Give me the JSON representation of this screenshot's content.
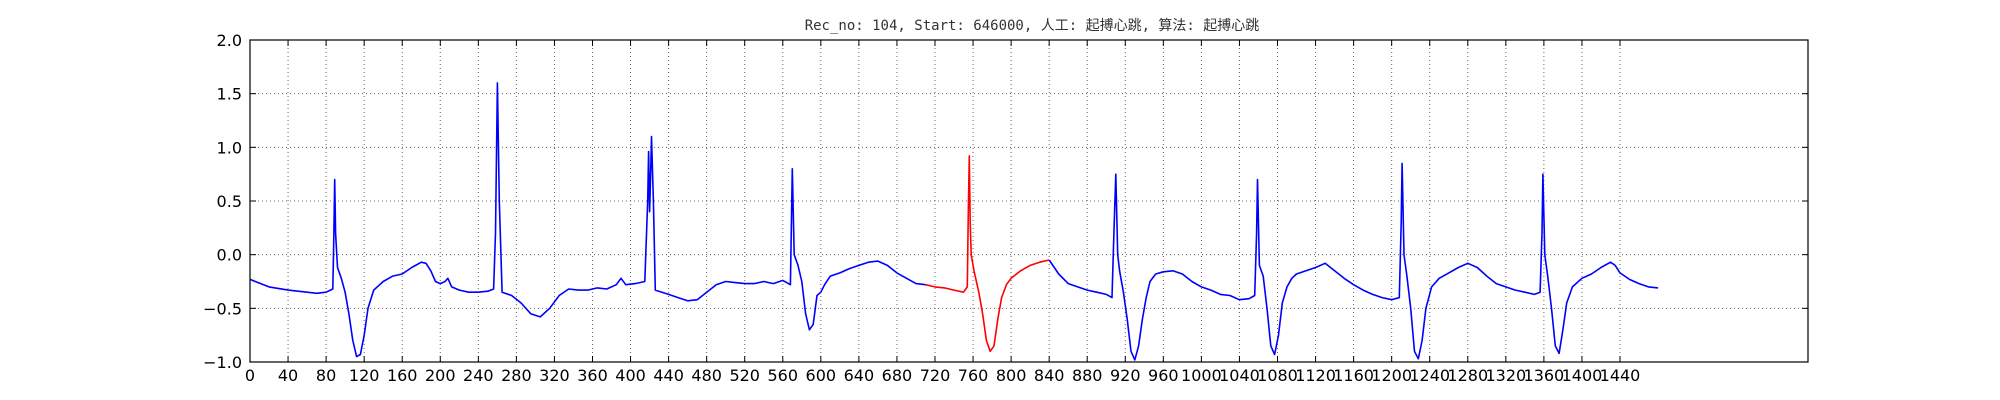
{
  "chart_data": {
    "type": "line",
    "title": "Rec_no: 104, Start: 646000, 人工: 起搏心跳, 算法: 起搏心跳",
    "xlabel": "",
    "ylabel": "",
    "xlim": [
      0,
      1440
    ],
    "ylim": [
      -1.0,
      2.0
    ],
    "yticks": [
      -1.0,
      -0.5,
      0.0,
      0.5,
      1.0,
      1.5,
      2.0
    ],
    "ytick_labels": [
      "−1.0",
      "−0.5",
      "0.0",
      "0.5",
      "1.0",
      "1.5",
      "2.0"
    ],
    "xticks": [
      0,
      40,
      80,
      120,
      160,
      200,
      240,
      280,
      320,
      360,
      400,
      440,
      480,
      520,
      560,
      600,
      640,
      680,
      720,
      760,
      800,
      840,
      880,
      920,
      960,
      1000,
      1040,
      1080,
      1120,
      1160,
      1200,
      1240,
      1280,
      1320,
      1360,
      1400,
      1440
    ],
    "xtick_labels": [
      "0",
      "40",
      "80",
      "120",
      "160",
      "200",
      "240",
      "280",
      "320",
      "360",
      "400",
      "440",
      "480",
      "520",
      "560",
      "600",
      "640",
      "680",
      "720",
      "760",
      "800",
      "840",
      "880",
      "920",
      "960",
      "1000",
      "1040",
      "1080",
      "1120",
      "1160",
      "1200",
      "1240",
      "1280",
      "1320",
      "1360",
      "1400",
      "1440"
    ],
    "grid": true,
    "series": [
      {
        "color": "#0000ff",
        "points": [
          [
            0,
            -0.23
          ],
          [
            20,
            -0.3
          ],
          [
            40,
            -0.33
          ],
          [
            60,
            -0.35
          ],
          [
            70,
            -0.36
          ],
          [
            80,
            -0.35
          ],
          [
            87,
            -0.32
          ],
          [
            88,
            0.1
          ],
          [
            89,
            0.7
          ],
          [
            90,
            0.2
          ],
          [
            92,
            -0.12
          ],
          [
            96,
            -0.22
          ],
          [
            100,
            -0.35
          ],
          [
            104,
            -0.55
          ],
          [
            108,
            -0.8
          ],
          [
            112,
            -0.95
          ],
          [
            116,
            -0.93
          ],
          [
            120,
            -0.75
          ],
          [
            124,
            -0.5
          ],
          [
            130,
            -0.33
          ],
          [
            140,
            -0.25
          ],
          [
            150,
            -0.2
          ],
          [
            160,
            -0.18
          ],
          [
            170,
            -0.12
          ],
          [
            180,
            -0.07
          ],
          [
            185,
            -0.08
          ],
          [
            190,
            -0.15
          ],
          [
            195,
            -0.25
          ],
          [
            200,
            -0.27
          ],
          [
            205,
            -0.25
          ],
          [
            208,
            -0.22
          ],
          [
            212,
            -0.3
          ],
          [
            220,
            -0.33
          ],
          [
            230,
            -0.35
          ],
          [
            240,
            -0.35
          ],
          [
            250,
            -0.34
          ],
          [
            256,
            -0.32
          ],
          [
            258,
            0.2
          ],
          [
            260,
            1.6
          ],
          [
            262,
            0.5
          ],
          [
            265,
            -0.35
          ],
          [
            275,
            -0.38
          ],
          [
            285,
            -0.45
          ],
          [
            295,
            -0.55
          ],
          [
            305,
            -0.58
          ],
          [
            315,
            -0.5
          ],
          [
            325,
            -0.38
          ],
          [
            335,
            -0.32
          ],
          [
            345,
            -0.33
          ],
          [
            355,
            -0.33
          ],
          [
            365,
            -0.31
          ],
          [
            375,
            -0.32
          ],
          [
            385,
            -0.28
          ],
          [
            390,
            -0.22
          ],
          [
            395,
            -0.28
          ],
          [
            405,
            -0.27
          ],
          [
            415,
            -0.25
          ],
          [
            418,
            0.5
          ],
          [
            419,
            0.96
          ],
          [
            420,
            0.4
          ],
          [
            421,
            0.7
          ],
          [
            422,
            1.1
          ],
          [
            424,
            0.5
          ],
          [
            426,
            -0.33
          ],
          [
            440,
            -0.37
          ],
          [
            450,
            -0.4
          ],
          [
            460,
            -0.43
          ],
          [
            470,
            -0.42
          ],
          [
            480,
            -0.35
          ],
          [
            490,
            -0.28
          ],
          [
            500,
            -0.25
          ],
          [
            510,
            -0.26
          ],
          [
            520,
            -0.27
          ],
          [
            530,
            -0.27
          ],
          [
            540,
            -0.25
          ],
          [
            550,
            -0.27
          ],
          [
            560,
            -0.24
          ],
          [
            568,
            -0.28
          ],
          [
            570,
            0.8
          ],
          [
            572,
            0.0
          ],
          [
            576,
            -0.1
          ],
          [
            580,
            -0.25
          ],
          [
            584,
            -0.55
          ],
          [
            588,
            -0.7
          ],
          [
            592,
            -0.65
          ],
          [
            596,
            -0.38
          ],
          [
            600,
            -0.35
          ],
          [
            604,
            -0.28
          ],
          [
            610,
            -0.2
          ],
          [
            620,
            -0.17
          ],
          [
            630,
            -0.13
          ],
          [
            640,
            -0.1
          ],
          [
            650,
            -0.07
          ],
          [
            660,
            -0.06
          ],
          [
            670,
            -0.1
          ],
          [
            680,
            -0.17
          ],
          [
            690,
            -0.22
          ],
          [
            700,
            -0.27
          ],
          [
            710,
            -0.28
          ]
        ]
      },
      {
        "color": "#ff0000",
        "points": [
          [
            710,
            -0.28
          ],
          [
            720,
            -0.3
          ],
          [
            730,
            -0.31
          ],
          [
            740,
            -0.33
          ],
          [
            750,
            -0.35
          ],
          [
            754,
            -0.3
          ],
          [
            755,
            0.4
          ],
          [
            756,
            0.92
          ],
          [
            757,
            0.3
          ],
          [
            758,
            0.0
          ],
          [
            761,
            -0.15
          ],
          [
            766,
            -0.35
          ],
          [
            770,
            -0.55
          ],
          [
            774,
            -0.8
          ],
          [
            778,
            -0.9
          ],
          [
            782,
            -0.85
          ],
          [
            786,
            -0.6
          ],
          [
            790,
            -0.4
          ],
          [
            795,
            -0.28
          ],
          [
            800,
            -0.22
          ],
          [
            810,
            -0.15
          ],
          [
            820,
            -0.1
          ],
          [
            830,
            -0.07
          ],
          [
            840,
            -0.05
          ]
        ]
      },
      {
        "color": "#0000ff",
        "points": [
          [
            840,
            -0.05
          ],
          [
            850,
            -0.18
          ],
          [
            860,
            -0.27
          ],
          [
            870,
            -0.3
          ],
          [
            880,
            -0.33
          ],
          [
            890,
            -0.35
          ],
          [
            900,
            -0.37
          ],
          [
            906,
            -0.4
          ],
          [
            908,
            0.2
          ],
          [
            910,
            0.75
          ],
          [
            912,
            0.0
          ],
          [
            914,
            -0.15
          ],
          [
            918,
            -0.35
          ],
          [
            922,
            -0.6
          ],
          [
            926,
            -0.9
          ],
          [
            930,
            -0.98
          ],
          [
            934,
            -0.85
          ],
          [
            938,
            -0.6
          ],
          [
            942,
            -0.4
          ],
          [
            946,
            -0.25
          ],
          [
            952,
            -0.18
          ],
          [
            960,
            -0.16
          ],
          [
            970,
            -0.15
          ],
          [
            980,
            -0.18
          ],
          [
            990,
            -0.25
          ],
          [
            1000,
            -0.3
          ],
          [
            1010,
            -0.33
          ],
          [
            1020,
            -0.37
          ],
          [
            1030,
            -0.38
          ],
          [
            1040,
            -0.42
          ],
          [
            1050,
            -0.41
          ],
          [
            1056,
            -0.38
          ],
          [
            1058,
            0.2
          ],
          [
            1059,
            0.7
          ],
          [
            1061,
            -0.1
          ],
          [
            1065,
            -0.2
          ],
          [
            1069,
            -0.5
          ],
          [
            1073,
            -0.85
          ],
          [
            1077,
            -0.93
          ],
          [
            1081,
            -0.75
          ],
          [
            1085,
            -0.45
          ],
          [
            1090,
            -0.3
          ],
          [
            1095,
            -0.22
          ],
          [
            1100,
            -0.18
          ],
          [
            1110,
            -0.15
          ],
          [
            1120,
            -0.12
          ],
          [
            1130,
            -0.08
          ],
          [
            1140,
            -0.15
          ],
          [
            1150,
            -0.22
          ],
          [
            1160,
            -0.28
          ],
          [
            1170,
            -0.33
          ],
          [
            1180,
            -0.37
          ],
          [
            1190,
            -0.4
          ],
          [
            1200,
            -0.42
          ],
          [
            1208,
            -0.4
          ],
          [
            1210,
            0.3
          ],
          [
            1211,
            0.85
          ],
          [
            1213,
            0.0
          ],
          [
            1216,
            -0.2
          ],
          [
            1220,
            -0.5
          ],
          [
            1224,
            -0.9
          ],
          [
            1228,
            -0.97
          ],
          [
            1232,
            -0.8
          ],
          [
            1236,
            -0.5
          ],
          [
            1242,
            -0.3
          ],
          [
            1250,
            -0.22
          ],
          [
            1260,
            -0.17
          ],
          [
            1270,
            -0.12
          ],
          [
            1280,
            -0.08
          ],
          [
            1290,
            -0.12
          ],
          [
            1300,
            -0.2
          ],
          [
            1310,
            -0.27
          ],
          [
            1320,
            -0.3
          ],
          [
            1330,
            -0.33
          ],
          [
            1340,
            -0.35
          ],
          [
            1350,
            -0.37
          ],
          [
            1356,
            -0.35
          ],
          [
            1358,
            0.2
          ],
          [
            1359,
            0.75
          ],
          [
            1361,
            0.0
          ],
          [
            1364,
            -0.2
          ],
          [
            1368,
            -0.5
          ],
          [
            1372,
            -0.85
          ],
          [
            1376,
            -0.92
          ],
          [
            1380,
            -0.7
          ],
          [
            1384,
            -0.45
          ],
          [
            1390,
            -0.3
          ],
          [
            1400,
            -0.22
          ],
          [
            1410,
            -0.18
          ],
          [
            1420,
            -0.12
          ],
          [
            1430,
            -0.07
          ],
          [
            1435,
            -0.1
          ],
          [
            1440,
            -0.17
          ],
          [
            1450,
            -0.23
          ],
          [
            1460,
            -0.27
          ],
          [
            1470,
            -0.3
          ],
          [
            1480,
            -0.31
          ]
        ]
      }
    ]
  }
}
